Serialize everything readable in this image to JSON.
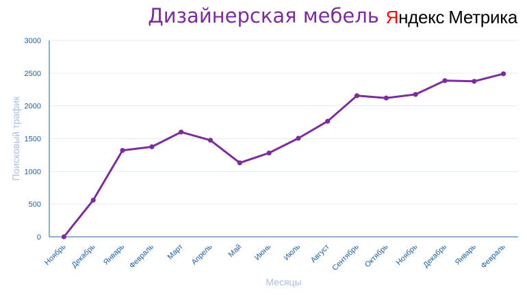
{
  "logo": {
    "brand_first_letter": "Я",
    "brand_rest": "ндекс",
    "product": "Метрика"
  },
  "colors": {
    "line": "#7b2d9b",
    "title": "#7b2d9b",
    "ticks": "#1f5fa3",
    "axis_title": "#a9bfdc",
    "grid": "#e3eef3"
  },
  "chart_data": {
    "type": "line",
    "title": "Дизайнерская мебель",
    "xlabel": "Месяцы",
    "ylabel": "Поисковый трафик",
    "ylim": [
      0,
      3000
    ],
    "yticks": [
      0,
      500,
      1000,
      1500,
      2000,
      2500,
      3000
    ],
    "grid": true,
    "categories": [
      "Ноябрь",
      "Декабрь",
      "Январь",
      "Февраль",
      "Март",
      "Апрель",
      "Май",
      "Июнь",
      "Июль",
      "Август",
      "Сентябрь",
      "Октябрь",
      "Ноябрь",
      "Декабрь",
      "Январь",
      "Февраль"
    ],
    "series": [
      {
        "values": [
          0,
          560,
          1320,
          1375,
          1600,
          1475,
          1130,
          1280,
          1505,
          1765,
          2155,
          2120,
          2175,
          2385,
          2375,
          2490
        ]
      }
    ]
  }
}
